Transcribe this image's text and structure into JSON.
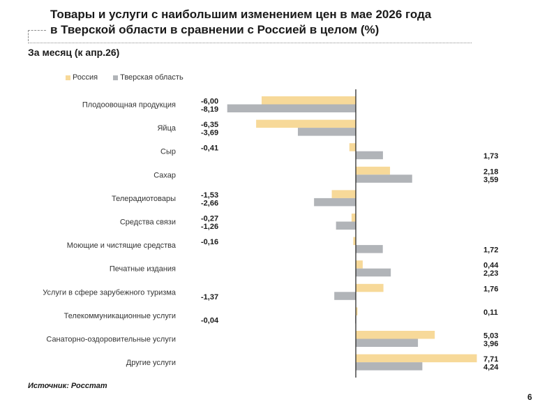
{
  "title_line1": "Товары и услуги с наибольшим изменением цен в мае 2026 года",
  "title_line2": "в Тверской области в сравнении с Россией в целом (%)",
  "subtitle": "За месяц (к апр.26)",
  "source_label": "Источник:",
  "source_value": "Росстат",
  "page_number": "6",
  "chart_data": {
    "type": "bar",
    "orientation": "horizontal",
    "categories": [
      "Плодоовощная продукция",
      "Яйца",
      "Сыр",
      "Сахар",
      "Телерадиотовары",
      "Средства связи",
      "Моющие и чистящие средства",
      "Печатные издания",
      "Услуги в сфере зарубежного туризма",
      "Телекоммуникационные услуги",
      "Санаторно-оздоровительные услуги",
      "Другие услуги"
    ],
    "series": [
      {
        "name": "Россия",
        "color": "#f7d999",
        "values": [
          -6.0,
          -6.35,
          -0.41,
          2.18,
          -1.53,
          -0.27,
          -0.16,
          0.44,
          1.76,
          0.11,
          5.03,
          7.71
        ]
      },
      {
        "name": "Тверская область",
        "color": "#b1b4b8",
        "values": [
          -8.19,
          -3.69,
          1.73,
          3.59,
          -2.66,
          -1.26,
          1.72,
          2.23,
          -1.37,
          -0.04,
          3.96,
          4.24
        ]
      }
    ],
    "value_labels": [
      [
        "-6,00",
        "-6,35",
        "-0,41",
        "2,18",
        "-1,53",
        "-0,27",
        "-0,16",
        "0,44",
        "1,76",
        "0,11",
        "5,03",
        "7,71"
      ],
      [
        "-8,19",
        "-3,69",
        "1,73",
        "3,59",
        "-2,66",
        "-1,26",
        "1,72",
        "2,23",
        "-1,37",
        "-0,04",
        "3,96",
        "4,24"
      ]
    ],
    "xlim": [
      -8.19,
      7.71
    ],
    "grid": false,
    "legend_position": "top-left"
  }
}
